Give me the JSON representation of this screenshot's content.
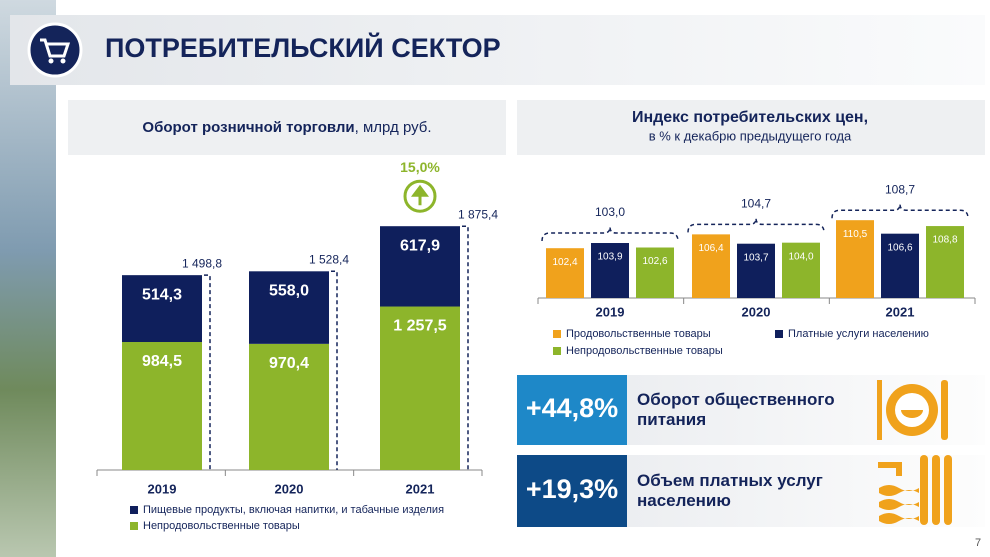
{
  "title": "ПОТРЕБИТЕЛЬСКИЙ СЕКТОР",
  "chart_data": [
    {
      "type": "bar",
      "stacked": true,
      "title": "Оборот розничной торговли",
      "unit": ", млрд руб.",
      "categories": [
        "2019",
        "2020",
        "2021"
      ],
      "series": [
        {
          "name": "Пищевые продукты, включая напитки, и табачные изделия",
          "color": "#0f1f5c",
          "values": [
            514.3,
            558.0,
            617.9
          ],
          "value_labels": [
            "514,3",
            "558,0",
            "617,9"
          ]
        },
        {
          "name": "Непродовольственные товары",
          "color": "#8db52b",
          "values": [
            984.5,
            970.4,
            1257.5
          ],
          "value_labels": [
            "984,5",
            "970,4",
            "1 257,5"
          ]
        }
      ],
      "totals": [
        1498.8,
        1528.4,
        1875.4
      ],
      "total_labels": [
        "1 498,8",
        "1 528,4",
        "1 875,4"
      ],
      "annotation": "15,0%",
      "ylim": [
        0,
        2000
      ]
    },
    {
      "type": "bar",
      "stacked": false,
      "title": "Индекс потребительских цен,",
      "subtitle": "в % к декабрю предыдущего года",
      "categories": [
        "2019",
        "2020",
        "2021"
      ],
      "series": [
        {
          "name": "Продовольственные товары",
          "color": "#f0a21c",
          "values": [
            102.4,
            106.4,
            110.5
          ],
          "value_labels": [
            "102,4",
            "106,4",
            "110,5"
          ]
        },
        {
          "name": "Платные услуги населению",
          "color": "#0f1f5c",
          "values": [
            103.9,
            103.7,
            106.6
          ],
          "value_labels": [
            "103,9",
            "103,7",
            "106,6"
          ]
        },
        {
          "name": "Непродовольственные товары",
          "color": "#8db52b",
          "values": [
            102.6,
            104.0,
            108.8
          ],
          "value_labels": [
            "102,6",
            "104,0",
            "108,8"
          ]
        }
      ],
      "totals": [
        103.0,
        104.7,
        108.7
      ],
      "total_labels": [
        "103,0",
        "104,7",
        "108,7"
      ],
      "ylim": [
        88,
        112
      ]
    }
  ],
  "kpis": [
    {
      "value": "+44,8%",
      "label": "Оборот общественного питания"
    },
    {
      "value": "+19,3%",
      "label": "Объем платных услуг населению"
    }
  ],
  "page_number": "7"
}
